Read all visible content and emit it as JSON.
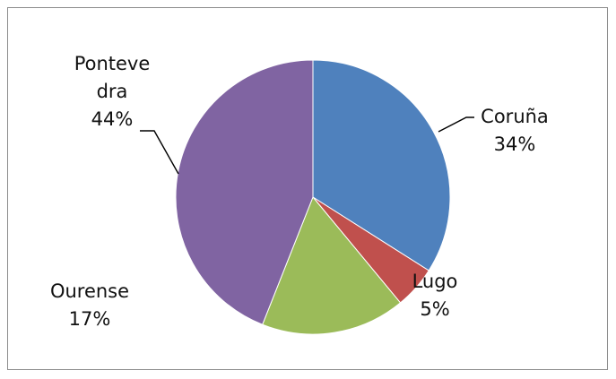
{
  "chart_data": {
    "type": "pie",
    "title": "",
    "slices": [
      {
        "label": "Coruña",
        "value": 34,
        "percent_label": "34%",
        "color": "#4f81bd"
      },
      {
        "label": "Lugo",
        "value": 5,
        "percent_label": "5%",
        "color": "#c0504d"
      },
      {
        "label": "Ourense",
        "value": 17,
        "percent_label": "17%",
        "color": "#9bbb59"
      },
      {
        "label": "Ponteve dra",
        "label_lines": [
          "Ponteve",
          "dra"
        ],
        "value": 44,
        "percent_label": "44%",
        "color": "#8064a2"
      }
    ],
    "legend": "none",
    "data_labels": "outside with category name and percentage"
  }
}
